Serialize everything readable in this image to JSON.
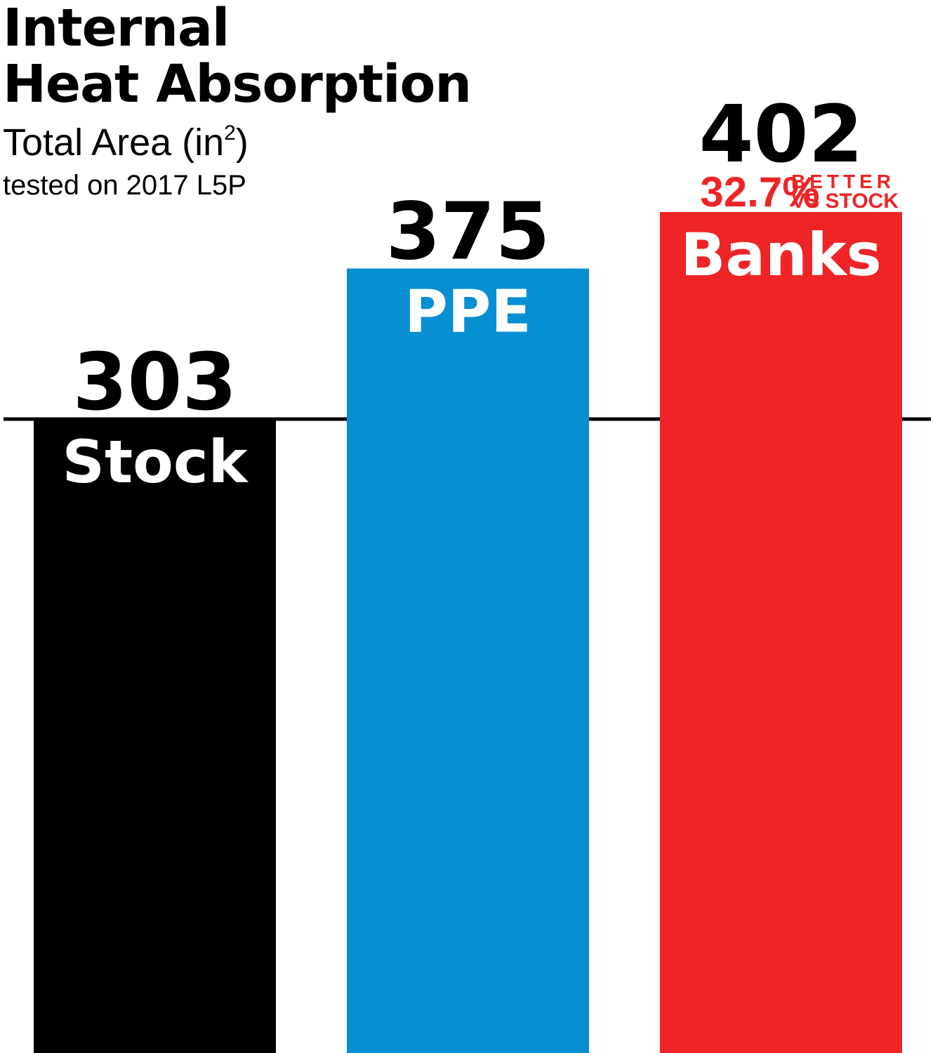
{
  "header": {
    "title_line1": "Internal",
    "title_line2": "Heat Absorption",
    "subtitle_text": "Total Area (in",
    "subtitle_sup": "2",
    "subtitle_close": ")",
    "note": "tested on 2017 L5P"
  },
  "chart_data": {
    "type": "bar",
    "categories": [
      "Stock",
      "PPE",
      "Banks"
    ],
    "values": [
      303,
      375,
      402
    ],
    "colors": [
      "#000000",
      "#078fd2",
      "#ee2426"
    ],
    "highlight": {
      "category": "Banks",
      "percent": "32.7%",
      "line1": "BETTER",
      "line2": "VS STOCK"
    },
    "baseline_reference": 303
  }
}
